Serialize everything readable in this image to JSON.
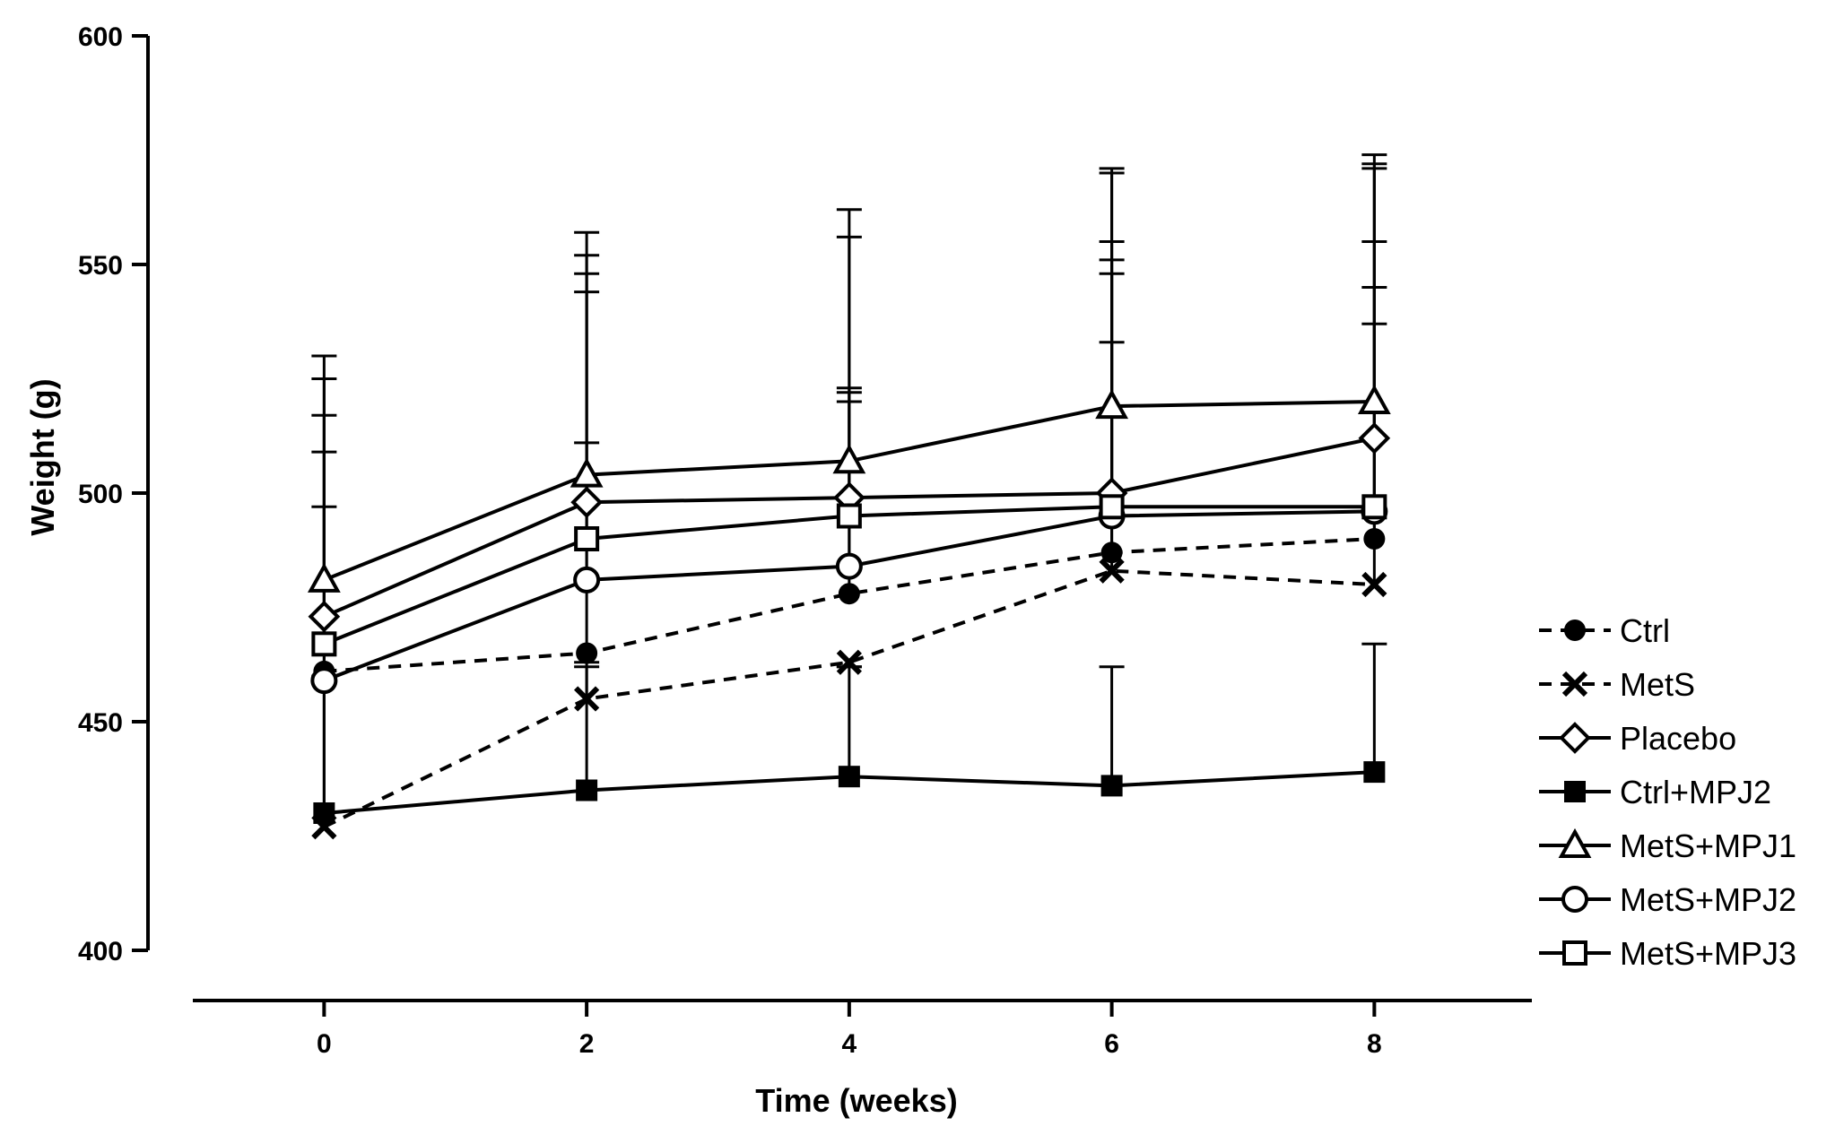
{
  "chart_data": {
    "type": "line",
    "title": "",
    "xlabel": "Time (weeks)",
    "ylabel": "Weight (g)",
    "x": [
      0,
      2,
      4,
      6,
      8
    ],
    "xlim": [
      -1,
      9.2
    ],
    "ylim": [
      400,
      600
    ],
    "yticks": [
      400,
      450,
      500,
      550,
      600
    ],
    "xticks": [
      0,
      2,
      4,
      6,
      8
    ],
    "legend_position": "right",
    "series": [
      {
        "name": "Ctrl",
        "marker": "filled-circle",
        "dashed": true,
        "values": [
          461,
          465,
          478,
          487,
          490
        ],
        "err_up": [
          497,
          511,
          522,
          548,
          537
        ]
      },
      {
        "name": "MetS",
        "marker": "x",
        "dashed": true,
        "values": [
          427,
          455,
          463,
          483,
          480
        ],
        "err_up": [
          460,
          462,
          462,
          533,
          545
        ]
      },
      {
        "name": "Placebo",
        "marker": "open-diamond",
        "dashed": false,
        "values": [
          473,
          498,
          499,
          500,
          512
        ],
        "err_up": [
          517,
          548,
          556,
          570,
          571
        ]
      },
      {
        "name": "Ctrl+MPJ2",
        "marker": "filled-square",
        "dashed": false,
        "values": [
          430,
          435,
          438,
          436,
          439
        ],
        "err_up": [
          460,
          463,
          462,
          462,
          467
        ]
      },
      {
        "name": "MetS+MPJ1",
        "marker": "open-triangle",
        "dashed": false,
        "values": [
          481,
          504,
          507,
          519,
          520
        ],
        "err_up": [
          530,
          557,
          562,
          571,
          574
        ]
      },
      {
        "name": "MetS+MPJ2",
        "marker": "open-circle",
        "dashed": false,
        "values": [
          459,
          481,
          484,
          495,
          496
        ],
        "err_up": [
          509,
          544,
          520,
          551,
          555
        ]
      },
      {
        "name": "MetS+MPJ3",
        "marker": "open-square",
        "dashed": false,
        "values": [
          467,
          490,
          495,
          497,
          497
        ],
        "err_up": [
          525,
          552,
          523,
          555,
          572
        ]
      }
    ]
  }
}
